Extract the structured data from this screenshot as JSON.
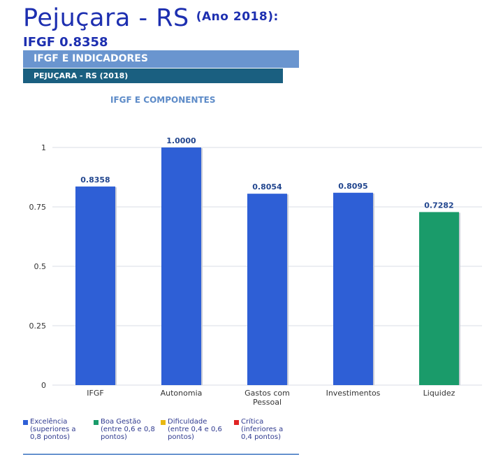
{
  "header": {
    "title": "Pejuçara - RS",
    "year": "(Ano 2018):",
    "ifgf_label": "IFGF",
    "ifgf_value": "0.8358"
  },
  "bands": {
    "primary": "IFGF E INDICADORES",
    "secondary": "PEJUÇARA - RS (2018)"
  },
  "colors": {
    "excelencia": "#2e5fd6",
    "boa_gestao": "#1a9b6a",
    "dificuldade": "#e8b812",
    "critica": "#e02424",
    "gridline": "#d8dce6",
    "axis_text": "#333333",
    "data_label": "#23478f"
  },
  "chart_data": {
    "type": "bar",
    "title": "IFGF E COMPONENTES",
    "categories": [
      "IFGF",
      "Autonomia",
      "Gastos com Pessoal",
      "Investimentos",
      "Liquidez"
    ],
    "values": [
      0.8358,
      1.0,
      0.8054,
      0.8095,
      0.7282
    ],
    "data_labels": [
      "0.8358",
      "1.0000",
      "0.8054",
      "0.8095",
      "0.7282"
    ],
    "bar_classes": [
      "excelencia",
      "excelencia",
      "excelencia",
      "excelencia",
      "boa_gestao"
    ],
    "ylim": [
      0,
      1
    ],
    "yticks": [
      0,
      0.25,
      0.5,
      0.75,
      1
    ],
    "ytick_labels": [
      "0",
      "0.25",
      "0.5",
      "0.75",
      "1"
    ],
    "grid": true,
    "legend_position": "bottom"
  },
  "legend": [
    {
      "key": "excelencia",
      "label": "Excelência",
      "desc": [
        "(superiores a",
        "0,8 pontos)"
      ]
    },
    {
      "key": "boa_gestao",
      "label": "Boa Gestão",
      "desc": [
        "(entre 0,6 e 0,8",
        "pontos)"
      ]
    },
    {
      "key": "dificuldade",
      "label": "Dificuldade",
      "desc": [
        "(entre 0,4 e 0,6",
        "pontos)"
      ]
    },
    {
      "key": "critica",
      "label": "Crítica",
      "desc": [
        "(inferiores a",
        "0,4 pontos)"
      ]
    }
  ]
}
